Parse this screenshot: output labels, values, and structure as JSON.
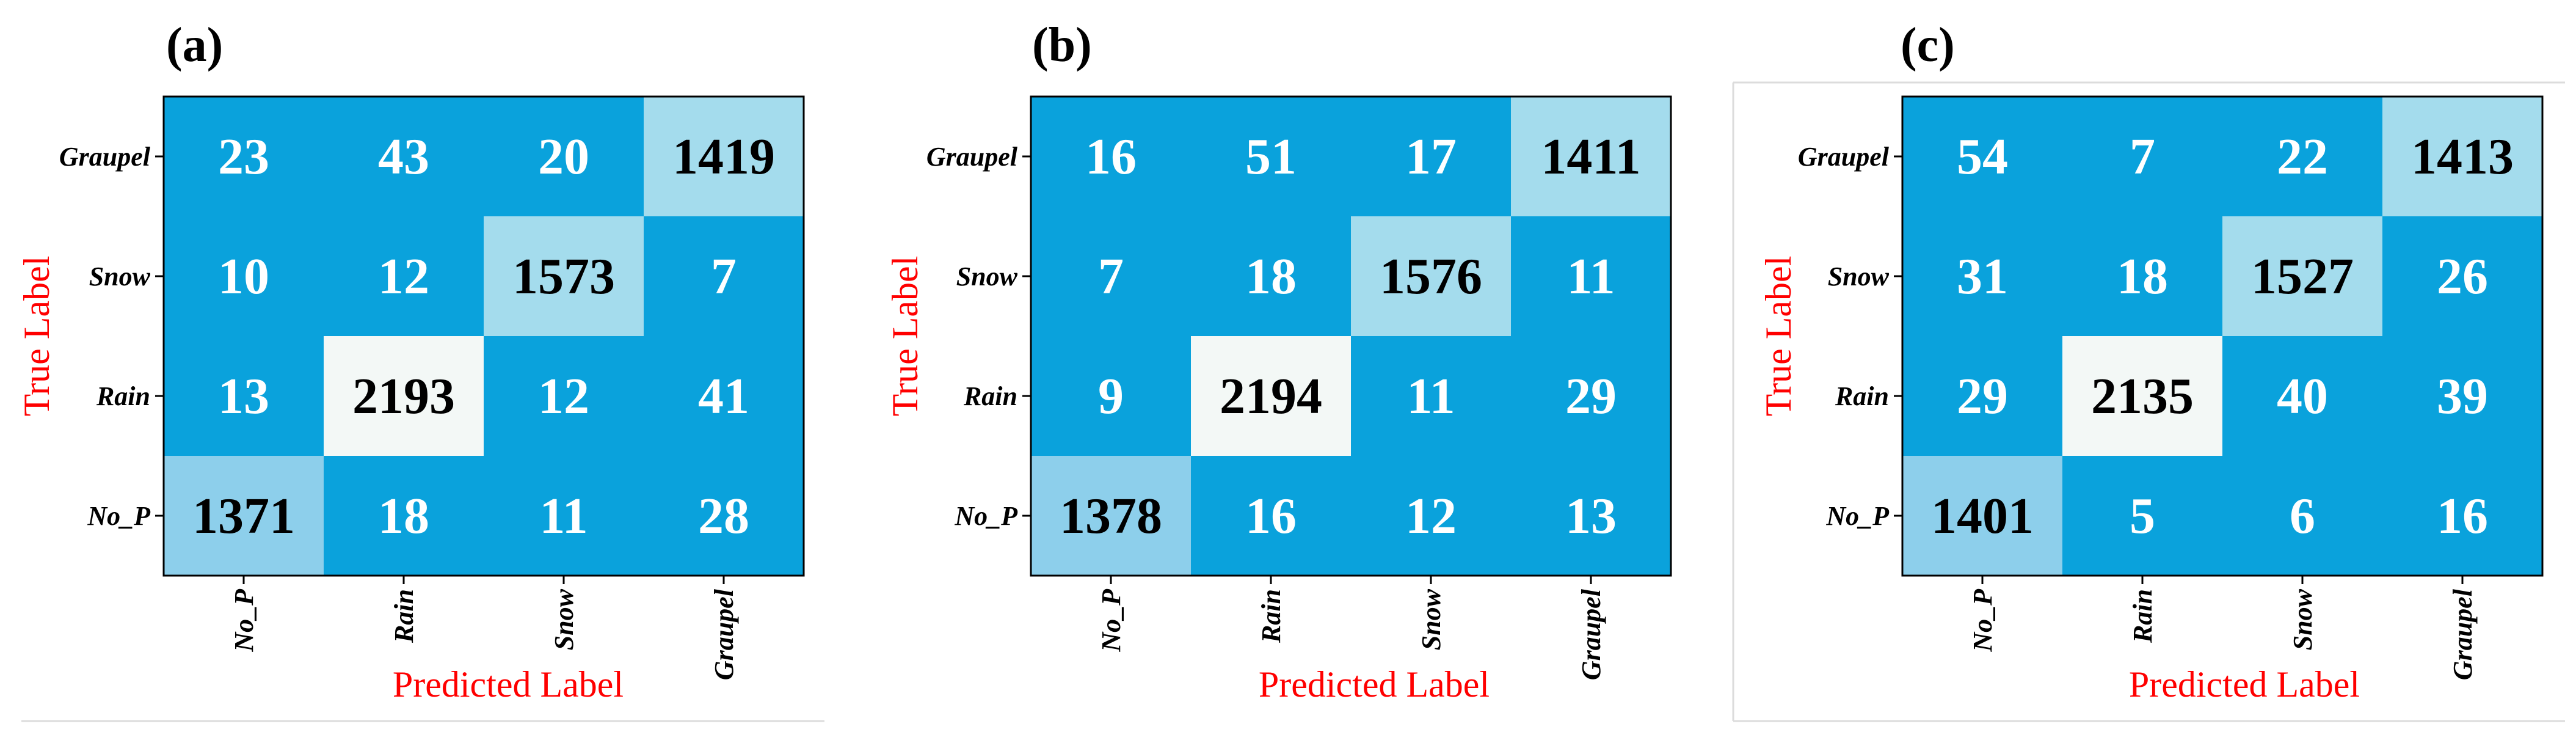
{
  "chart_data": [
    {
      "type": "heatmap",
      "panel": "(a)",
      "xlabel": "Predicted Label",
      "ylabel": "True Label",
      "x_categories": [
        "No_P",
        "Rain",
        "Snow",
        "Graupel"
      ],
      "y_categories": [
        "Graupel",
        "Snow",
        "Rain",
        "No_P"
      ],
      "values": [
        [
          23,
          43,
          20,
          1419
        ],
        [
          10,
          12,
          1573,
          7
        ],
        [
          13,
          2193,
          12,
          41
        ],
        [
          1371,
          18,
          11,
          28
        ]
      ]
    },
    {
      "type": "heatmap",
      "panel": "(b)",
      "xlabel": "Predicted Label",
      "ylabel": "True Label",
      "x_categories": [
        "No_P",
        "Rain",
        "Snow",
        "Graupel"
      ],
      "y_categories": [
        "Graupel",
        "Snow",
        "Rain",
        "No_P"
      ],
      "values": [
        [
          16,
          51,
          17,
          1411
        ],
        [
          7,
          18,
          1576,
          11
        ],
        [
          9,
          2194,
          11,
          29
        ],
        [
          1378,
          16,
          12,
          13
        ]
      ]
    },
    {
      "type": "heatmap",
      "panel": "(c)",
      "xlabel": "Predicted Label",
      "ylabel": "True Label",
      "x_categories": [
        "No_P",
        "Rain",
        "Snow",
        "Graupel"
      ],
      "y_categories": [
        "Graupel",
        "Snow",
        "Rain",
        "No_P"
      ],
      "values": [
        [
          54,
          7,
          22,
          1413
        ],
        [
          31,
          18,
          1527,
          26
        ],
        [
          29,
          2135,
          40,
          39
        ],
        [
          1401,
          5,
          6,
          16
        ]
      ]
    }
  ],
  "colors": {
    "cell_low": "#0aa2dc",
    "cell_mid": "#8dcfeb",
    "cell_high": "#a4dced",
    "cell_max": "#f3f8f6",
    "text_light": "#ffffff",
    "text_dark": "#000000",
    "axis_title": "#ff0000",
    "frame": "#000000"
  }
}
